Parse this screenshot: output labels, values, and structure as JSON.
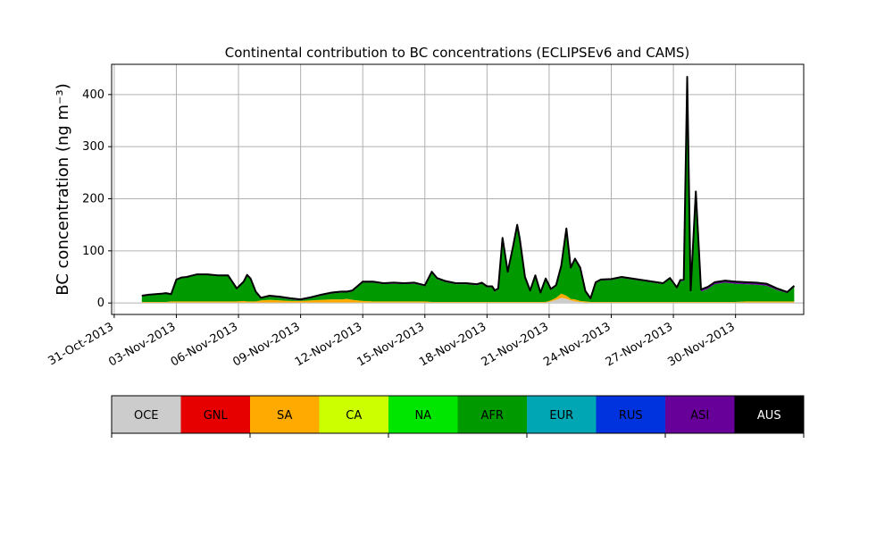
{
  "chart_data": {
    "type": "area",
    "stacked": true,
    "title": "Continental contribution to BC concentrations (ECLIPSEv6 and CAMS)",
    "xlabel": "",
    "ylabel": "BC concentration (ng m⁻³)",
    "ylim": [
      -22,
      458
    ],
    "xlim": [
      "2013-10-30T21:00",
      "2013-12-03T07:00"
    ],
    "yticks": [
      0,
      100,
      200,
      300,
      400
    ],
    "xticks": [
      "31-Oct-2013",
      "03-Nov-2013",
      "06-Nov-2013",
      "09-Nov-2013",
      "12-Nov-2013",
      "15-Nov-2013",
      "18-Nov-2013",
      "21-Nov-2013",
      "24-Nov-2013",
      "27-Nov-2013",
      "30-Nov-2013"
    ],
    "xtick_dates": [
      "2013-10-31",
      "2013-11-03",
      "2013-11-06",
      "2013-11-09",
      "2013-11-12",
      "2013-11-15",
      "2013-11-18",
      "2013-11-21",
      "2013-11-24",
      "2013-11-27",
      "2013-11-30"
    ],
    "grid": true,
    "total_line_color": "#000000",
    "x": [
      "2013-11-01T08:00",
      "2013-11-01T16:00",
      "2013-11-02T00:00",
      "2013-11-02T08:00",
      "2013-11-02T12:00",
      "2013-11-02T18:00",
      "2013-11-03T00:00",
      "2013-11-03T06:00",
      "2013-11-03T12:00",
      "2013-11-04T00:00",
      "2013-11-04T12:00",
      "2013-11-05T00:00",
      "2013-11-05T12:00",
      "2013-11-05T22:00",
      "2013-11-06T06:00",
      "2013-11-06T10:00",
      "2013-11-06T14:00",
      "2013-11-06T20:00",
      "2013-11-07T02:00",
      "2013-11-07T12:00",
      "2013-11-08T00:00",
      "2013-11-08T12:00",
      "2013-11-09T00:00",
      "2013-11-09T12:00",
      "2013-11-10T00:00",
      "2013-11-10T12:00",
      "2013-11-11T00:00",
      "2013-11-11T06:00",
      "2013-11-11T12:00",
      "2013-11-12T00:00",
      "2013-11-12T12:00",
      "2013-11-13T00:00",
      "2013-11-13T12:00",
      "2013-11-14T00:00",
      "2013-11-14T12:00",
      "2013-11-15T00:00",
      "2013-11-15T08:00",
      "2013-11-15T14:00",
      "2013-11-16T00:00",
      "2013-11-16T12:00",
      "2013-11-17T00:00",
      "2013-11-17T12:00",
      "2013-11-17T18:00",
      "2013-11-18T00:00",
      "2013-11-18T06:00",
      "2013-11-18T09:00",
      "2013-11-18T13:00",
      "2013-11-18T18:00",
      "2013-11-19T00:00",
      "2013-11-19T06:00",
      "2013-11-19T11:00",
      "2013-11-19T14:00",
      "2013-11-19T20:00",
      "2013-11-20T02:00",
      "2013-11-20T08:00",
      "2013-11-20T14:00",
      "2013-11-20T20:00",
      "2013-11-21T02:00",
      "2013-11-21T08:00",
      "2013-11-21T14:00",
      "2013-11-21T20:00",
      "2013-11-22T01:00",
      "2013-11-22T06:00",
      "2013-11-22T12:00",
      "2013-11-22T18:00",
      "2013-11-23T00:00",
      "2013-11-23T06:00",
      "2013-11-23T12:00",
      "2013-11-24T00:00",
      "2013-11-24T12:00",
      "2013-11-25T00:00",
      "2013-11-25T12:00",
      "2013-11-26T00:00",
      "2013-11-26T12:00",
      "2013-11-26T20:00",
      "2013-11-27T04:00",
      "2013-11-27T08:00",
      "2013-11-27T12:00",
      "2013-11-27T16:00",
      "2013-11-27T20:00",
      "2013-11-28T02:00",
      "2013-11-28T08:00",
      "2013-11-28T16:00",
      "2013-11-29T00:00",
      "2013-11-29T12:00",
      "2013-11-30T00:00",
      "2013-11-30T12:00",
      "2013-12-01T00:00",
      "2013-12-01T12:00",
      "2013-12-02T00:00",
      "2013-12-02T12:00",
      "2013-12-02T20:00"
    ],
    "series": [
      {
        "name": "OCE",
        "color": "#cccccc",
        "values": [
          1,
          1,
          1,
          1,
          1,
          1,
          1,
          1,
          1,
          1,
          1,
          1,
          1,
          1,
          1,
          1,
          1,
          1,
          1,
          1,
          1,
          1,
          1,
          1,
          1,
          1,
          1,
          1,
          1,
          1,
          1,
          1,
          1,
          1,
          1,
          1,
          1,
          1,
          1,
          1,
          1,
          1,
          1,
          1,
          1,
          1,
          1,
          1,
          1,
          1,
          1,
          1,
          1,
          1,
          1,
          1,
          1,
          3,
          6,
          10,
          8,
          5,
          3,
          2,
          1,
          1,
          1,
          1,
          1,
          1,
          1,
          1,
          1,
          1,
          1,
          1,
          1,
          1,
          1,
          1,
          1,
          1,
          1,
          1,
          1,
          1,
          1,
          1,
          1,
          1,
          1,
          1
        ]
      },
      {
        "name": "GNL",
        "color": "#e60000",
        "values": [
          0,
          0,
          0,
          0,
          0,
          0,
          0,
          0,
          0,
          0,
          0,
          0,
          0,
          0,
          0,
          0,
          0,
          0,
          0,
          0,
          0,
          0,
          0,
          0,
          0,
          0,
          0,
          0,
          0,
          0,
          0,
          0,
          0,
          0,
          0,
          0,
          0,
          0,
          0,
          0,
          0,
          0,
          0,
          0,
          0,
          0,
          0,
          0,
          0,
          0,
          0,
          0,
          0,
          0,
          0,
          0,
          0,
          0,
          0,
          0,
          0,
          0,
          0,
          0,
          0,
          0,
          0,
          0,
          0,
          0,
          0,
          0,
          0,
          0,
          0,
          0,
          0,
          0,
          0,
          0,
          0,
          0,
          0,
          0,
          0,
          0,
          0,
          0,
          0,
          0,
          0,
          0
        ]
      },
      {
        "name": "SA",
        "color": "#ffaa00",
        "values": [
          1,
          1,
          1,
          1,
          1,
          2,
          2,
          2,
          2,
          2,
          2,
          2,
          2,
          2,
          3,
          2,
          2,
          2,
          4,
          5,
          4,
          3,
          3,
          4,
          5,
          6,
          6,
          7,
          5,
          3,
          2,
          2,
          2,
          2,
          2,
          2,
          1,
          1,
          1,
          1,
          1,
          1,
          1,
          1,
          1,
          1,
          1,
          1,
          1,
          1,
          1,
          1,
          1,
          1,
          1,
          1,
          1,
          2,
          4,
          8,
          6,
          3,
          4,
          2,
          2,
          1,
          1,
          1,
          1,
          1,
          1,
          1,
          1,
          1,
          1,
          1,
          1,
          1,
          1,
          1,
          1,
          1,
          1,
          1,
          1,
          1,
          2,
          2,
          2,
          2,
          2,
          2
        ]
      },
      {
        "name": "CA",
        "color": "#ccff00",
        "values": [
          0,
          0,
          0,
          0,
          0,
          0,
          0,
          0,
          0,
          0,
          0,
          0,
          0,
          0,
          0,
          0,
          0,
          0,
          0,
          0,
          0,
          0,
          0,
          0,
          0,
          0,
          0,
          0,
          0,
          0,
          0,
          0,
          0,
          0,
          0,
          0,
          0,
          0,
          0,
          0,
          0,
          0,
          0,
          0,
          0,
          0,
          0,
          0,
          0,
          0,
          0,
          0,
          0,
          0,
          0,
          0,
          0,
          0,
          0,
          0,
          0,
          0,
          0,
          0,
          0,
          0,
          0,
          0,
          0,
          0,
          0,
          0,
          0,
          0,
          0,
          0,
          0,
          0,
          0,
          0,
          0,
          0,
          0,
          0,
          0,
          0,
          0,
          0,
          0,
          0,
          0,
          0
        ]
      },
      {
        "name": "NA",
        "color": "#00e600",
        "values": [
          0,
          0,
          0,
          0,
          0,
          0,
          0,
          0,
          0,
          0,
          0,
          0,
          0,
          0,
          0,
          0,
          0,
          0,
          0,
          0,
          0,
          0,
          0,
          0,
          0,
          0,
          0,
          0,
          0,
          0,
          0,
          0,
          0,
          0,
          0,
          0,
          0,
          0,
          0,
          0,
          0,
          0,
          0,
          0,
          0,
          0,
          0,
          0,
          0,
          0,
          0,
          0,
          0,
          0,
          0,
          0,
          0,
          0,
          0,
          0,
          0,
          0,
          0,
          0,
          0,
          0,
          0,
          0,
          0,
          0,
          0,
          0,
          0,
          0,
          0,
          0,
          0,
          0,
          0,
          0,
          0,
          0,
          0,
          0,
          0,
          0,
          0,
          0,
          0,
          0,
          0,
          0
        ]
      },
      {
        "name": "AFR",
        "color": "#009900",
        "values": [
          11,
          13,
          14,
          15,
          16,
          13,
          41,
          45,
          46,
          51,
          51,
          49,
          49,
          24,
          36,
          50,
          43,
          18,
          4,
          6,
          5,
          3,
          1,
          4,
          8,
          11,
          13,
          12,
          16,
          35,
          36,
          33,
          34,
          33,
          34,
          29,
          56,
          44,
          38,
          34,
          34,
          32,
          35,
          28,
          28,
          20,
          24,
          120,
          56,
          103,
          145,
          118,
          46,
          20,
          49,
          16,
          43,
          20,
          22,
          51,
          127,
          58,
          76,
          62,
          18,
          5,
          36,
          41,
          42,
          46,
          43,
          40,
          37,
          34,
          44,
          26,
          40,
          40,
          420,
          20,
          205,
          20,
          25,
          34,
          37,
          35,
          33,
          32,
          30,
          22,
          16,
          28
        ]
      },
      {
        "name": "EUR",
        "color": "#00a6b3",
        "values": [
          0,
          0,
          0,
          0,
          0,
          0,
          0,
          0,
          0,
          0,
          0,
          0,
          0,
          0,
          0,
          0,
          0,
          0,
          0,
          0,
          0,
          0,
          0,
          0,
          0,
          0,
          0,
          0,
          0,
          0,
          0,
          0,
          0,
          0,
          0,
          0,
          0,
          0,
          0,
          0,
          0,
          0,
          0,
          0,
          0,
          0,
          0,
          0,
          0,
          0,
          0,
          0,
          0,
          0,
          0,
          0,
          0,
          0,
          0,
          0,
          0,
          0,
          0,
          0,
          0,
          0,
          0,
          0,
          0,
          0,
          0,
          0,
          0,
          0,
          0,
          0,
          0,
          0,
          0,
          0,
          0,
          0,
          0,
          0,
          0,
          0,
          0,
          0,
          0,
          0,
          0,
          0
        ]
      },
      {
        "name": "RUS",
        "color": "#0033dd",
        "values": [
          0,
          0,
          0,
          0,
          0,
          0,
          0,
          0,
          0,
          0,
          0,
          0,
          0,
          0,
          0,
          0,
          0,
          0,
          0,
          0,
          0,
          0,
          0,
          0,
          0,
          0,
          0,
          0,
          0,
          0,
          0,
          0,
          0,
          0,
          0,
          0,
          0,
          0,
          0,
          0,
          0,
          0,
          0,
          0,
          0,
          0,
          0,
          0,
          0,
          0,
          0,
          0,
          0,
          0,
          0,
          0,
          0,
          0,
          0,
          0,
          0,
          0,
          0,
          0,
          0,
          0,
          0,
          0,
          0,
          0,
          0,
          0,
          0,
          0,
          0,
          0,
          0,
          0,
          8,
          0,
          4,
          0,
          0,
          0,
          0,
          0,
          0,
          0,
          0,
          0,
          0,
          0
        ]
      },
      {
        "name": "ASI",
        "color": "#660099",
        "values": [
          1,
          1,
          1,
          1,
          1,
          1,
          1,
          1,
          1,
          1,
          1,
          1,
          1,
          1,
          1,
          1,
          1,
          1,
          1,
          2,
          2,
          2,
          2,
          2,
          2,
          2,
          2,
          2,
          2,
          2,
          2,
          2,
          2,
          2,
          2,
          2,
          2,
          2,
          2,
          2,
          2,
          2,
          2,
          2,
          2,
          2,
          2,
          3,
          2,
          2,
          3,
          3,
          2,
          2,
          2,
          2,
          2,
          2,
          2,
          2,
          2,
          2,
          2,
          2,
          2,
          2,
          2,
          2,
          2,
          2,
          2,
          2,
          2,
          2,
          2,
          2,
          2,
          3,
          4,
          2,
          3,
          4,
          4,
          4,
          4,
          4,
          4,
          4,
          4,
          3,
          2,
          2
        ]
      },
      {
        "name": "AUS",
        "color": "#000000",
        "values": [
          0,
          0,
          0,
          0,
          0,
          0,
          0,
          0,
          0,
          0,
          0,
          0,
          0,
          0,
          0,
          0,
          0,
          0,
          0,
          0,
          0,
          0,
          0,
          0,
          0,
          0,
          0,
          0,
          0,
          0,
          0,
          0,
          0,
          0,
          0,
          0,
          0,
          0,
          0,
          0,
          0,
          0,
          0,
          0,
          0,
          0,
          0,
          0,
          0,
          0,
          0,
          0,
          0,
          0,
          0,
          0,
          0,
          0,
          0,
          0,
          0,
          0,
          0,
          0,
          0,
          0,
          0,
          0,
          0,
          0,
          0,
          0,
          0,
          0,
          0,
          0,
          0,
          0,
          0,
          0,
          0,
          0,
          0,
          0,
          0,
          0,
          0,
          0,
          0,
          0,
          0,
          0
        ]
      }
    ]
  },
  "legend": {
    "items": [
      {
        "label": "OCE",
        "color": "#cccccc",
        "text_color": "#000000"
      },
      {
        "label": "GNL",
        "color": "#e60000",
        "text_color": "#000000"
      },
      {
        "label": "SA",
        "color": "#ffaa00",
        "text_color": "#000000"
      },
      {
        "label": "CA",
        "color": "#ccff00",
        "text_color": "#000000"
      },
      {
        "label": "NA",
        "color": "#00e600",
        "text_color": "#000000"
      },
      {
        "label": "AFR",
        "color": "#009900",
        "text_color": "#000000"
      },
      {
        "label": "EUR",
        "color": "#00a6b3",
        "text_color": "#000000"
      },
      {
        "label": "RUS",
        "color": "#0033dd",
        "text_color": "#000000"
      },
      {
        "label": "ASI",
        "color": "#660099",
        "text_color": "#000000"
      },
      {
        "label": "AUS",
        "color": "#000000",
        "text_color": "#ffffff"
      }
    ]
  }
}
